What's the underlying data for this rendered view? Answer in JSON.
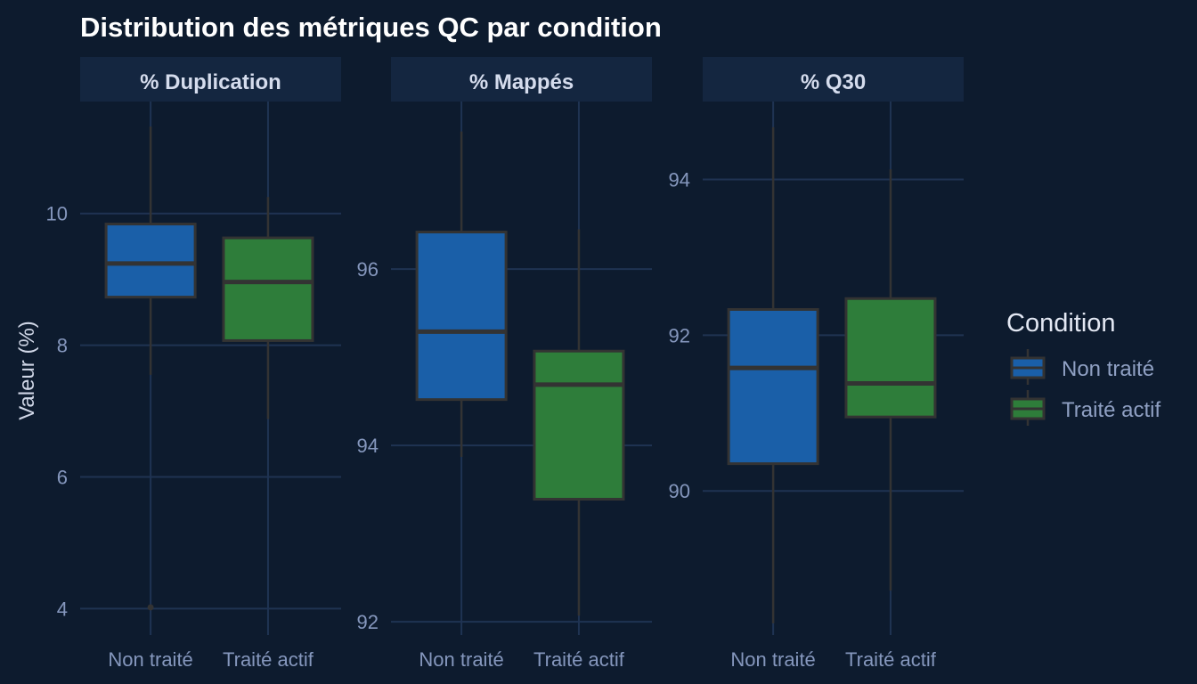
{
  "title": "Distribution des métriques QC par condition",
  "y_axis_label": "Valeur (%)",
  "colors": {
    "background": "#0d1b2e",
    "strip": "#142640",
    "grid": "#1f3352",
    "outline": "#333333",
    "Non traité": "#1a5fa8",
    "Traité actif": "#2e7d3a"
  },
  "legend": {
    "title": "Condition",
    "items": [
      "Non traité",
      "Traité actif"
    ]
  },
  "chart_data": {
    "type": "boxplot",
    "title": "Distribution des métriques QC par condition",
    "ylabel": "Valeur (%)",
    "categories": [
      "Non traité",
      "Traité actif"
    ],
    "facets": [
      {
        "name": "% Duplication",
        "ylim": [
          3.6,
          11.7
        ],
        "yticks": [
          4,
          6,
          8,
          10
        ],
        "grid_y": [
          4,
          6,
          8,
          10
        ],
        "boxes": [
          {
            "group": "Non traité",
            "min": 7.55,
            "q1": 8.73,
            "median": 9.24,
            "q3": 9.84,
            "max": 11.32,
            "outliers": [
              4.02
            ]
          },
          {
            "group": "Traité actif",
            "min": 6.88,
            "q1": 8.07,
            "median": 8.96,
            "q3": 9.63,
            "max": 10.25,
            "outliers": []
          }
        ]
      },
      {
        "name": "% Mappés",
        "ylim": [
          91.85,
          97.9
        ],
        "yticks": [
          92,
          94,
          96
        ],
        "grid_y": [
          92,
          94,
          96
        ],
        "boxes": [
          {
            "group": "Non traité",
            "min": 93.87,
            "q1": 94.52,
            "median": 95.29,
            "q3": 96.42,
            "max": 97.56,
            "outliers": []
          },
          {
            "group": "Traité actif",
            "min": 92.07,
            "q1": 93.39,
            "median": 94.69,
            "q3": 95.07,
            "max": 96.45,
            "outliers": []
          }
        ]
      },
      {
        "name": "% Q30",
        "ylim": [
          88.15,
          95.0
        ],
        "yticks": [
          90,
          92,
          94
        ],
        "grid_y": [
          90,
          92,
          94
        ],
        "boxes": [
          {
            "group": "Non traité",
            "min": 88.3,
            "q1": 90.35,
            "median": 91.58,
            "q3": 92.33,
            "max": 94.67,
            "outliers": []
          },
          {
            "group": "Traité actif",
            "min": 88.72,
            "q1": 90.95,
            "median": 91.38,
            "q3": 92.47,
            "max": 94.13,
            "outliers": []
          }
        ]
      }
    ]
  }
}
